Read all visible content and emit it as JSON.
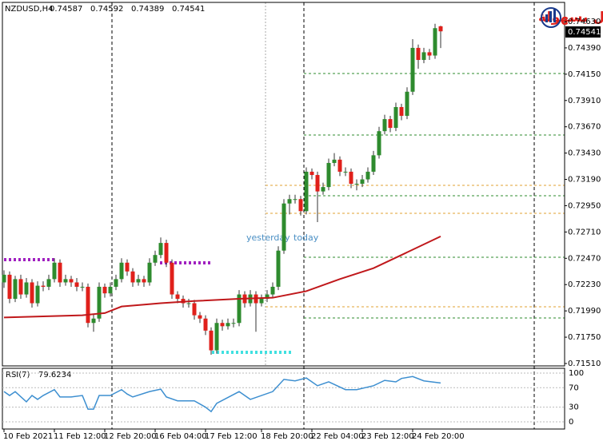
{
  "chart_data": [
    {
      "type": "candlestick",
      "title": "NZDUSD,H4",
      "categories": [
        "10 Feb 2021",
        null,
        null,
        null,
        null,
        null,
        null,
        null,
        null,
        "11 Feb 12:00",
        null,
        null,
        null,
        null,
        null,
        null,
        null,
        null,
        "12 Feb 20:00",
        null,
        null,
        null,
        null,
        null,
        null,
        null,
        null,
        "16 Feb 04:00",
        null,
        null,
        null,
        null,
        null,
        null,
        null,
        null,
        "17 Feb 12:00",
        null,
        null,
        null,
        null,
        null,
        null,
        null,
        null,
        null,
        "18 Feb 20:00",
        null,
        null,
        null,
        null,
        null,
        null,
        null,
        null,
        "22 Feb 04:00",
        null,
        null,
        null,
        null,
        null,
        null,
        null,
        null,
        "23 Feb 12:00",
        null,
        null,
        null,
        null,
        null,
        null,
        null,
        null,
        "24 Feb 20:00",
        null,
        null,
        null,
        null,
        null
      ],
      "series": [
        {
          "color_up": "#2e8b2e",
          "color_down": "#e0201b",
          "open": [
            0.7225,
            0.7232,
            0.721,
            0.7228,
            0.7214,
            0.7225,
            0.7206,
            0.7222,
            0.7221,
            0.7228,
            0.7243,
            0.7225,
            0.7228,
            0.7225,
            0.7221,
            0.7221,
            0.7188,
            0.7192,
            0.7221,
            0.7215,
            0.7221,
            0.7228,
            0.7243,
            0.7235,
            0.7225,
            0.7228,
            0.7225,
            0.7243,
            0.725,
            0.7261,
            0.7243,
            0.7214,
            0.721,
            0.7206,
            0.7206,
            0.7195,
            0.7192,
            0.7181,
            0.7163,
            0.7188,
            0.7185,
            0.7188,
            0.7188,
            0.7214,
            0.7206,
            0.7214,
            0.7206,
            0.721,
            0.7214,
            0.7221,
            0.7254,
            0.7297,
            0.7301,
            0.7301,
            0.729,
            0.7326,
            0.7323,
            0.7308,
            0.7312,
            0.7334,
            0.7337,
            0.7326,
            0.7326,
            0.7315,
            0.7315,
            0.7319,
            0.7326,
            0.7341,
            0.7363,
            0.7374,
            0.7366,
            0.7385,
            0.7377,
            0.7399,
            0.7439,
            0.7428,
            0.7435,
            0.7432,
            0.74587
          ],
          "high": [
            0.7236,
            0.7235,
            0.7231,
            0.7232,
            0.7229,
            0.7228,
            0.7226,
            0.7226,
            0.7232,
            0.7247,
            0.7246,
            0.7232,
            0.7231,
            0.7229,
            0.7225,
            0.7224,
            0.7196,
            0.7225,
            0.7224,
            0.7225,
            0.7232,
            0.7247,
            0.7246,
            0.7238,
            0.7232,
            0.7231,
            0.7247,
            0.7254,
            0.7266,
            0.7264,
            0.7246,
            0.7217,
            0.7213,
            0.721,
            0.7209,
            0.7198,
            0.7195,
            0.7184,
            0.7192,
            0.7191,
            0.7192,
            0.7192,
            0.7218,
            0.7217,
            0.7218,
            0.7217,
            0.7214,
            0.7218,
            0.7225,
            0.7258,
            0.7301,
            0.7305,
            0.7305,
            0.7304,
            0.733,
            0.7329,
            0.7326,
            0.7316,
            0.7338,
            0.7343,
            0.734,
            0.733,
            0.7329,
            0.7319,
            0.7323,
            0.733,
            0.7345,
            0.7367,
            0.7378,
            0.7377,
            0.7389,
            0.7388,
            0.7403,
            0.7447,
            0.7442,
            0.7439,
            0.7438,
            0.7461,
            0.74592
          ],
          "low": [
            0.722,
            0.7206,
            0.7207,
            0.721,
            0.7211,
            0.7202,
            0.7203,
            0.7217,
            0.7218,
            0.7225,
            0.7221,
            0.7222,
            0.7221,
            0.7217,
            0.7217,
            0.7184,
            0.718,
            0.7189,
            0.7211,
            0.7212,
            0.7218,
            0.7225,
            0.7231,
            0.7221,
            0.7222,
            0.7221,
            0.7222,
            0.724,
            0.7247,
            0.7239,
            0.721,
            0.7206,
            0.7202,
            0.7202,
            0.7191,
            0.7188,
            0.7177,
            0.7159,
            0.716,
            0.7181,
            0.7182,
            0.7184,
            0.7185,
            0.7202,
            0.7203,
            0.718,
            0.7203,
            0.7207,
            0.7211,
            0.7218,
            0.7251,
            0.7287,
            0.7297,
            0.7286,
            0.7287,
            0.7319,
            0.728,
            0.7305,
            0.7309,
            0.7331,
            0.7322,
            0.7322,
            0.7311,
            0.7309,
            0.7312,
            0.7316,
            0.7323,
            0.7338,
            0.736,
            0.7362,
            0.7363,
            0.7373,
            0.7374,
            0.7396,
            0.742,
            0.7425,
            0.7428,
            0.7429,
            0.74389
          ],
          "close": [
            0.7232,
            0.721,
            0.7228,
            0.7214,
            0.7225,
            0.7206,
            0.7222,
            0.7221,
            0.7228,
            0.7243,
            0.7225,
            0.7228,
            0.7225,
            0.7221,
            0.7221,
            0.7188,
            0.7192,
            0.7221,
            0.7215,
            0.7221,
            0.7228,
            0.7243,
            0.7235,
            0.7225,
            0.7228,
            0.7225,
            0.7243,
            0.725,
            0.7261,
            0.7243,
            0.7214,
            0.721,
            0.7206,
            0.7206,
            0.7195,
            0.7192,
            0.7181,
            0.7163,
            0.7188,
            0.7185,
            0.7188,
            0.7188,
            0.7214,
            0.7206,
            0.7214,
            0.7206,
            0.721,
            0.7214,
            0.7221,
            0.7254,
            0.7297,
            0.7301,
            0.7301,
            0.729,
            0.7326,
            0.7323,
            0.7308,
            0.7312,
            0.7334,
            0.7337,
            0.7326,
            0.7326,
            0.7315,
            0.7315,
            0.7319,
            0.7326,
            0.7341,
            0.7363,
            0.7374,
            0.7366,
            0.7385,
            0.7377,
            0.7399,
            0.7439,
            0.7428,
            0.7435,
            0.7432,
            0.7457,
            0.74541
          ]
        }
      ],
      "ma": {
        "color": "#c0181b",
        "x": [
          0,
          14,
          18,
          21,
          28,
          34,
          42,
          48,
          54,
          60,
          66,
          71,
          78
        ],
        "values": [
          0.7193,
          0.7195,
          0.7197,
          0.7203,
          0.7206,
          0.7208,
          0.721,
          0.7211,
          0.7217,
          0.7228,
          0.7238,
          0.725,
          0.7267
        ]
      },
      "annotations": [
        "yesterday",
        "today"
      ],
      "ylim": [
        0.71488,
        0.74805
      ],
      "yticks": [
        {
          "value": 0.7463,
          "label": "0.74630"
        },
        {
          "value": 0.7439,
          "label": "0.74390"
        },
        {
          "value": 0.7415,
          "label": "0.74150"
        },
        {
          "value": 0.7391,
          "label": "0.73910"
        },
        {
          "value": 0.7367,
          "label": "0.73670"
        },
        {
          "value": 0.7343,
          "label": "0.73430"
        },
        {
          "value": 0.7319,
          "label": "0.73190"
        },
        {
          "value": 0.7295,
          "label": "0.72950"
        },
        {
          "value": 0.7271,
          "label": "0.72710"
        },
        {
          "value": 0.7247,
          "label": "0.72470"
        },
        {
          "value": 0.7223,
          "label": "0.72230"
        },
        {
          "value": 0.7199,
          "label": "0.71990"
        },
        {
          "value": 0.7175,
          "label": "0.71750"
        },
        {
          "value": 0.7151,
          "label": "0.71510"
        }
      ]
    },
    {
      "type": "line",
      "title": "RSI(7)",
      "color": "#3d8fd0",
      "x": [
        0,
        1,
        2,
        4,
        5,
        6,
        7,
        9,
        10,
        12,
        14,
        15,
        16,
        17,
        19,
        21,
        22,
        23,
        26,
        28,
        29,
        31,
        34,
        36,
        37,
        38,
        42,
        44,
        48,
        50,
        52,
        54,
        56,
        58,
        61,
        63,
        66,
        68,
        70,
        71,
        73,
        75,
        78
      ],
      "values": [
        62,
        54,
        62,
        41,
        54,
        46,
        54,
        66,
        51,
        51,
        54,
        26,
        26,
        54,
        54,
        66,
        57,
        51,
        62,
        67,
        51,
        43,
        43,
        30,
        21,
        38,
        62,
        46,
        62,
        87,
        84,
        90,
        74,
        82,
        66,
        66,
        74,
        85,
        82,
        89,
        93,
        84,
        79.6234
      ],
      "ylim": [
        -14.8,
        109.8
      ],
      "yticks": [
        100,
        70,
        30,
        0
      ]
    }
  ],
  "logo": "التداول بسهولة"
}
